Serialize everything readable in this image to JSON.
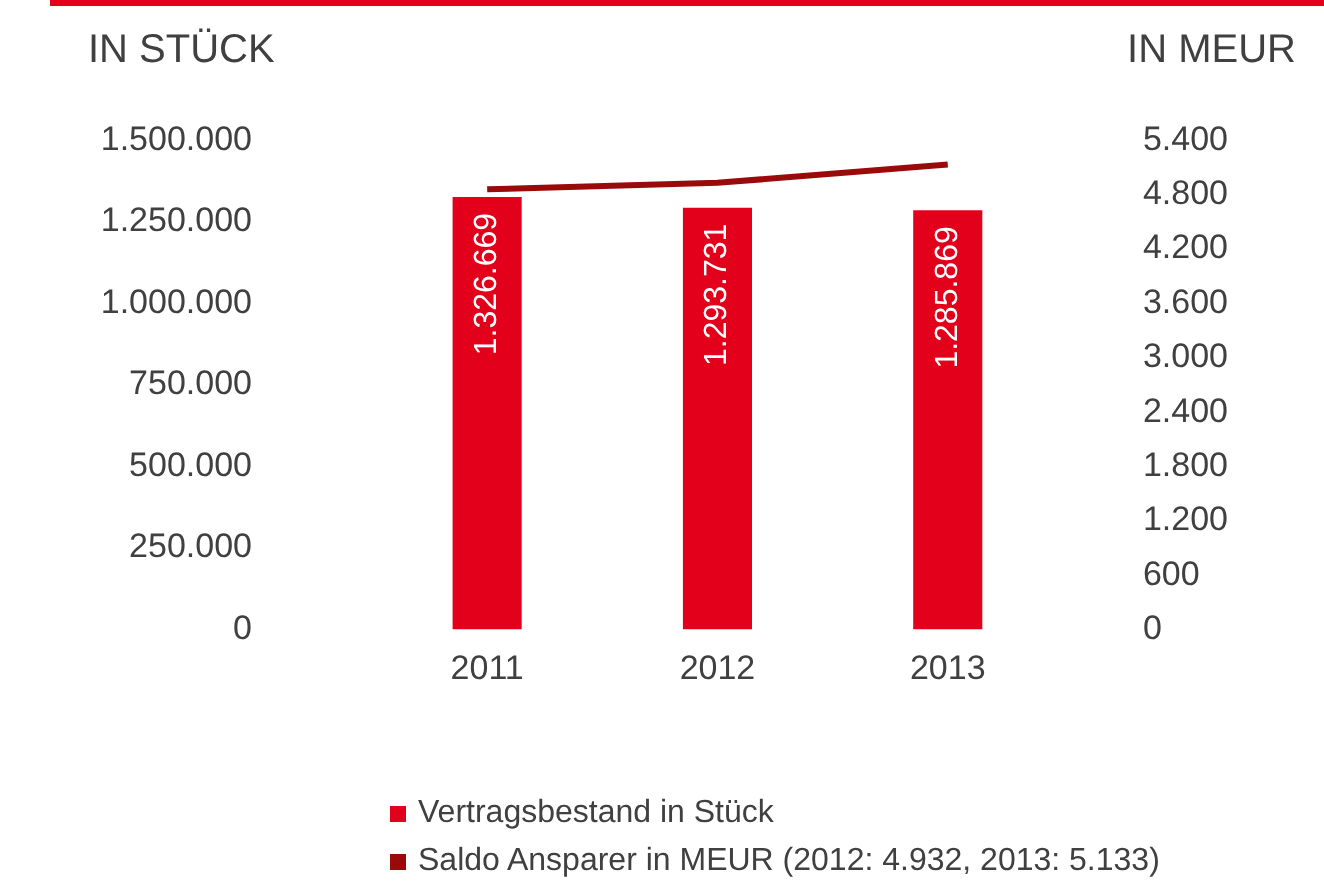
{
  "chart_data": {
    "type": "bar",
    "ylabel": "IN STÜCK",
    "y2label": "IN MEUR",
    "categories": [
      "2011",
      "2012",
      "2013"
    ],
    "series": [
      {
        "name": "Vertragsbestand in Stück",
        "color": "#e2001a",
        "values": [
          1326669,
          1293731,
          1285869
        ],
        "value_labels": [
          "1.326.669",
          "1.293.731",
          "1.285.869"
        ]
      },
      {
        "name": "Saldo Ansparer in MEUR (2012: 4.932, 2013: 5.133)",
        "type": "line",
        "axis": "y2",
        "color": "#9b0a0a",
        "values": [
          4860,
          4932,
          5133
        ]
      }
    ],
    "ylim": [
      0,
      1500000
    ],
    "yticks": [
      0,
      {
        "value": 250000,
        "label": "250.000"
      },
      {
        "value": 500000,
        "label": "500.000"
      },
      {
        "value": 750000,
        "label": "750.000"
      },
      {
        "value": 1000000,
        "label": "1.000.000"
      },
      {
        "value": 1250000,
        "label": "1.250.000"
      },
      {
        "value": 1500000,
        "label": "1.500.000"
      }
    ],
    "y2lim": [
      0,
      5400
    ],
    "y2ticks": [
      0,
      600,
      {
        "value": 1200,
        "label": "1.200"
      },
      {
        "value": 1800,
        "label": "1.800"
      },
      {
        "value": 2400,
        "label": "2.400"
      },
      {
        "value": 3000,
        "label": "3.000"
      },
      {
        "value": 3600,
        "label": "3.600"
      },
      {
        "value": 4200,
        "label": "4.200"
      },
      {
        "value": 4800,
        "label": "4.800"
      },
      {
        "value": 5400,
        "label": "5.400"
      }
    ],
    "legend": "bottom",
    "grid": false,
    "marker": "none",
    "line_style": "solid"
  }
}
